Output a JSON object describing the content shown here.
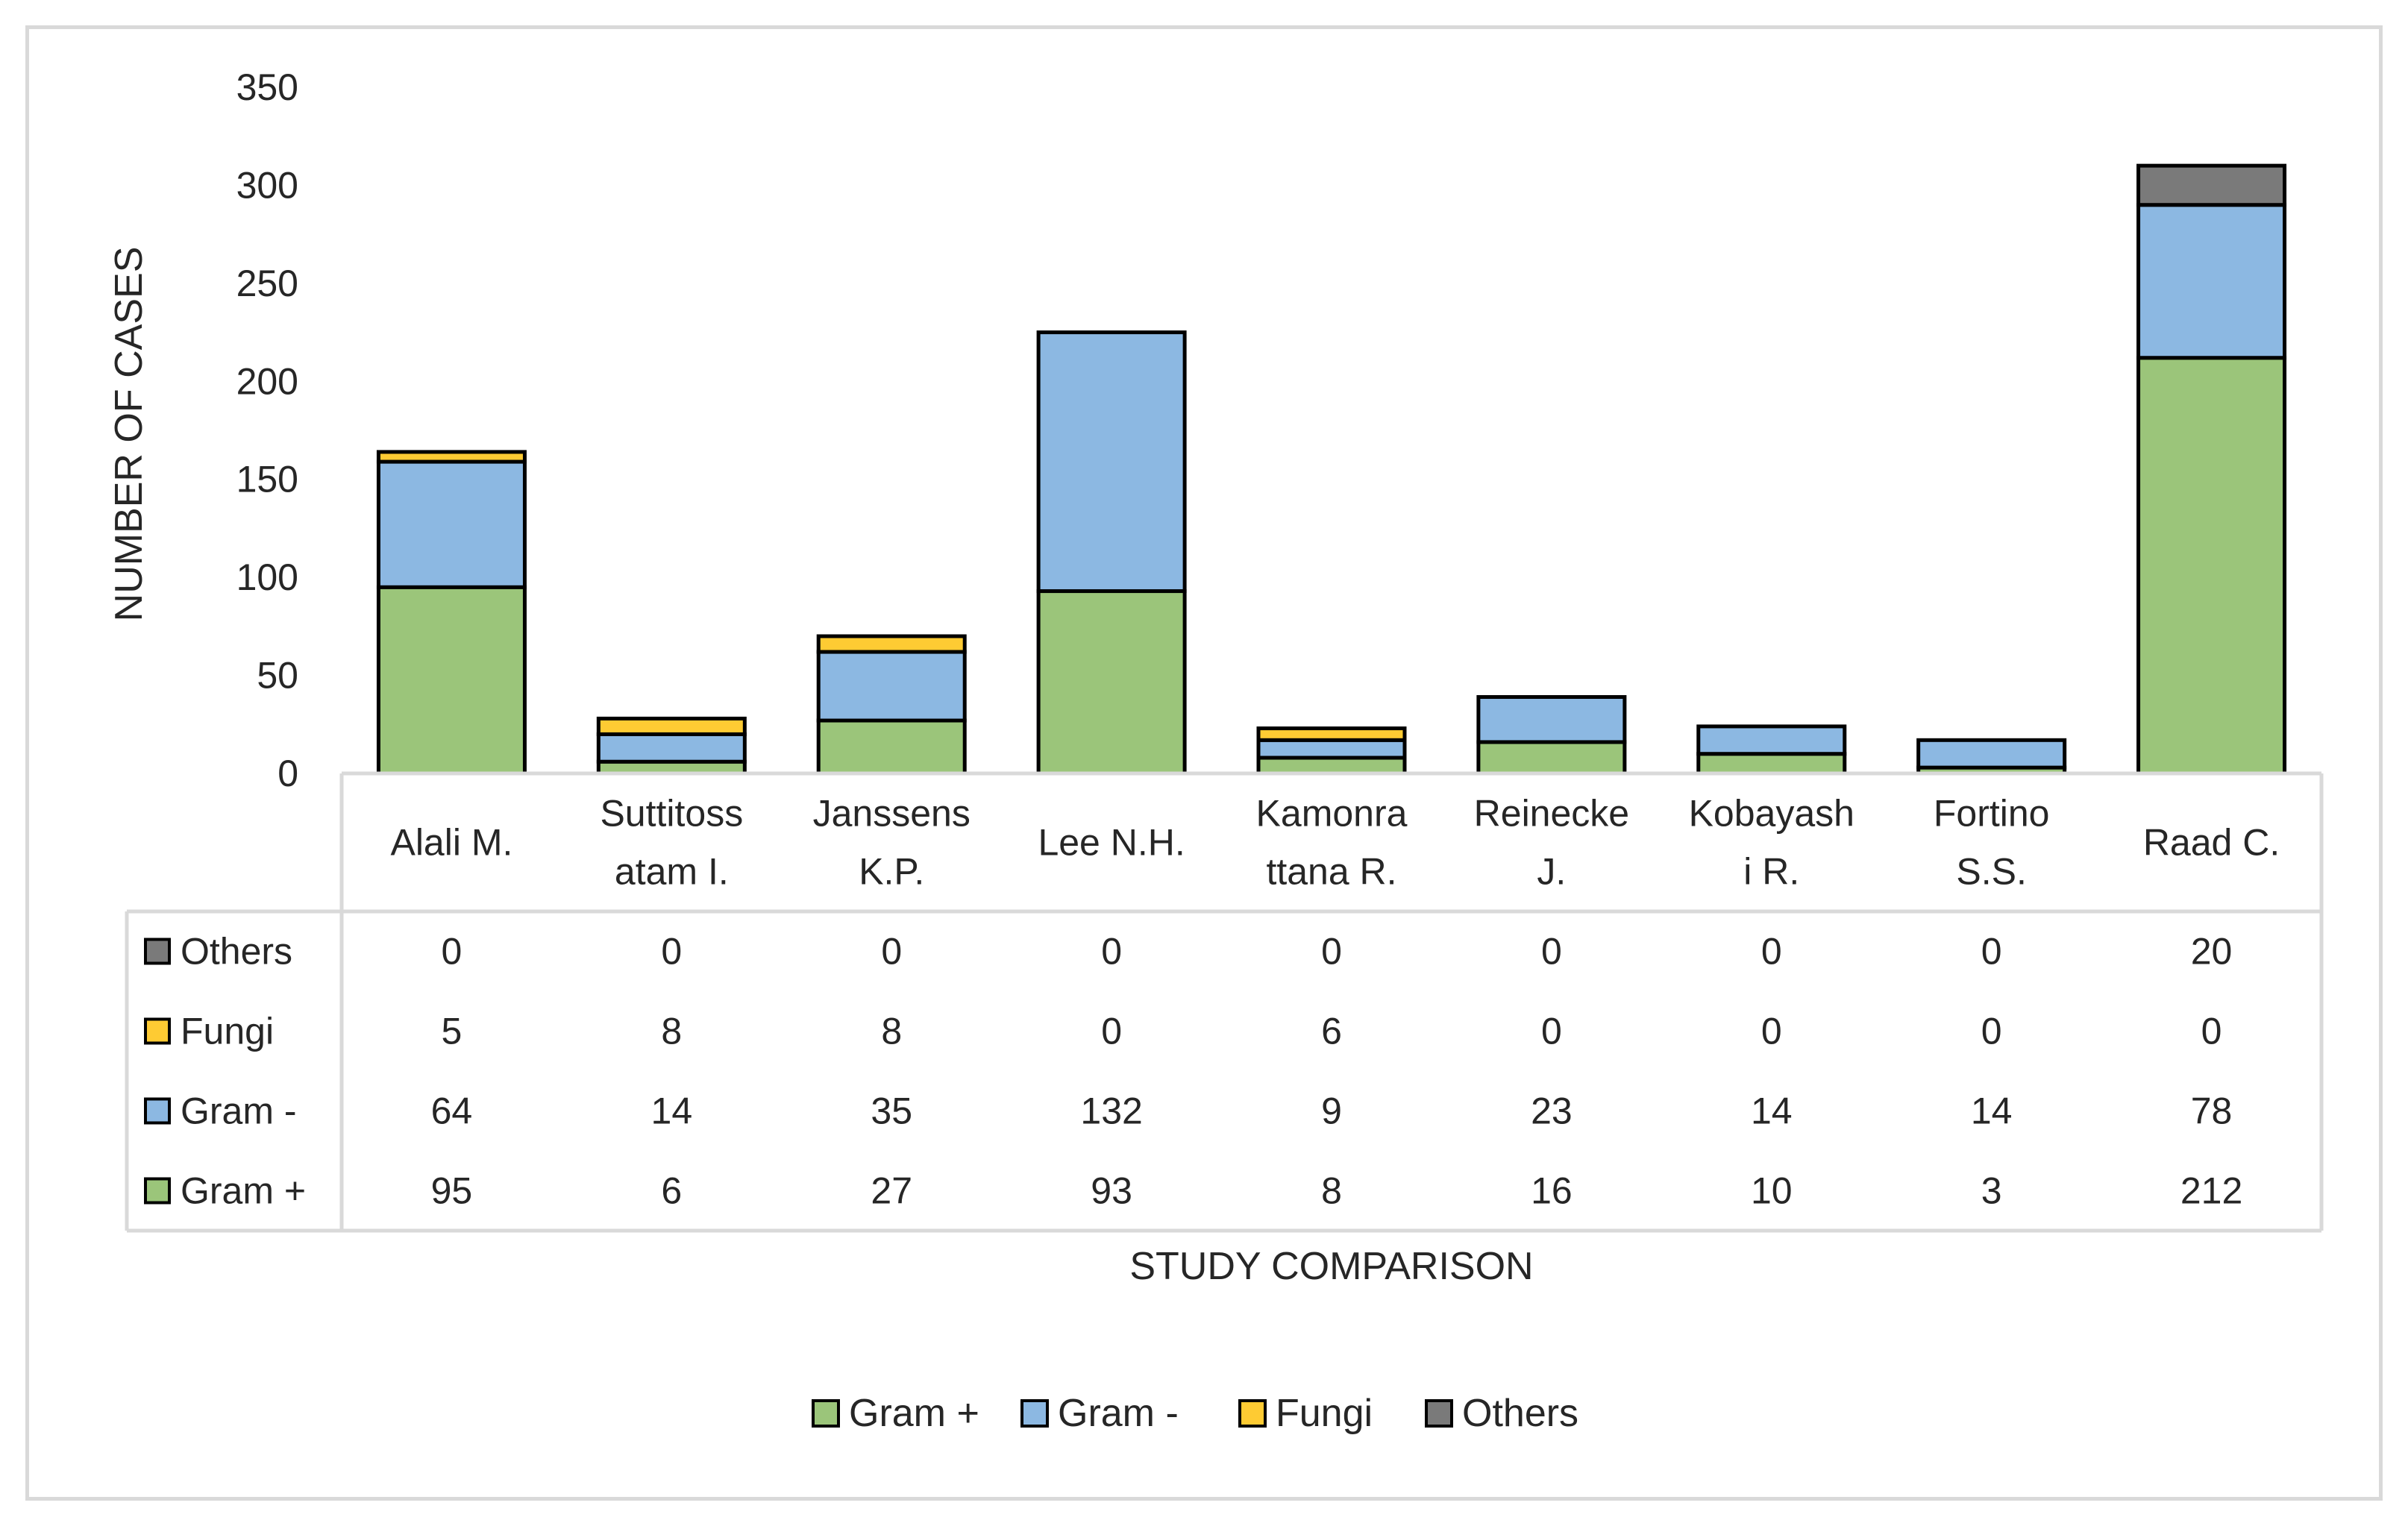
{
  "chart_data": {
    "type": "bar",
    "stacked": true,
    "categories": [
      [
        "Alali M."
      ],
      [
        "Suttitoss",
        "atam I."
      ],
      [
        "Janssens",
        "K.P."
      ],
      [
        "Lee N.H."
      ],
      [
        "Kamonra",
        "ttana R."
      ],
      [
        "Reinecke",
        "J."
      ],
      [
        "Kobayash",
        "i R."
      ],
      [
        "Fortino",
        "S.S."
      ],
      [
        "Raad C."
      ]
    ],
    "series": [
      {
        "name": "Gram +",
        "color": "#9bc57a",
        "values": [
          95,
          6,
          27,
          93,
          8,
          16,
          10,
          3,
          212
        ]
      },
      {
        "name": "Gram -",
        "color": "#8cb8e2",
        "values": [
          64,
          14,
          35,
          132,
          9,
          23,
          14,
          14,
          78
        ]
      },
      {
        "name": "Fungi",
        "color": "#fecb33",
        "values": [
          5,
          8,
          8,
          0,
          6,
          0,
          0,
          0,
          0
        ]
      },
      {
        "name": "Others",
        "color": "#7a7a7a",
        "values": [
          0,
          0,
          0,
          0,
          0,
          0,
          0,
          0,
          20
        ]
      }
    ],
    "table_row_order": [
      "Others",
      "Fungi",
      "Gram -",
      "Gram +"
    ],
    "xlabel": "STUDY COMPARISON",
    "ylabel": "NUMBER OF CASES",
    "ylim": [
      0,
      350
    ],
    "yticks": [
      0,
      50,
      100,
      150,
      200,
      250,
      300,
      350
    ],
    "grid": false,
    "legend_position": "bottom",
    "data_table": true
  }
}
